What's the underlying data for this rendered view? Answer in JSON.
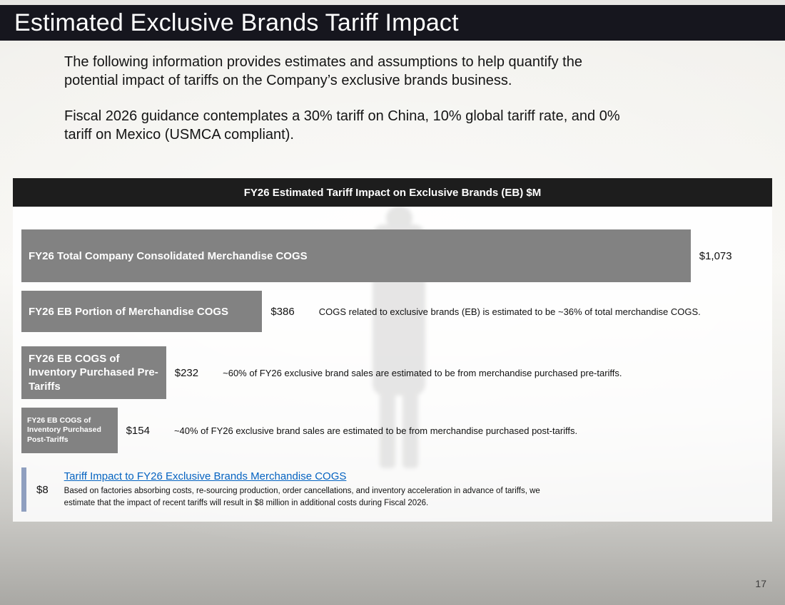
{
  "slide": {
    "title": "Estimated Exclusive Brands Tariff Impact",
    "intro_lines": [
      "The following information provides estimates and assumptions to help quantify the",
      "potential impact of tariffs on the Company’s exclusive brands business."
    ],
    "guidance_lines": [
      "Fiscal 2026 guidance contemplates a 30% tariff on China, 10% global tariff rate, and 0%",
      "tariff on Mexico (USMCA compliant)."
    ],
    "page_number": "17"
  },
  "chart": {
    "header": "FY26 Estimated Tariff Impact on Exclusive Brands (EB) $M",
    "rows": [
      {
        "label": "FY26 Total Company Consolidated Merchandise COGS",
        "value_label": "$1,073",
        "note": ""
      },
      {
        "label": "FY26 EB Portion of Merchandise COGS",
        "value_label": "$386",
        "note": "COGS related to exclusive brands (EB) is estimated to be ~36% of total merchandise COGS."
      },
      {
        "label": "FY26 EB COGS of Inventory Purchased Pre-Tariffs",
        "value_label": "$232",
        "note": "~60% of FY26 exclusive brand sales are estimated to be from merchandise purchased pre-tariffs."
      },
      {
        "label": "FY26 EB COGS of Inventory Purchased Post-Tariffs",
        "value_label": "$154",
        "note": "~40% of FY26 exclusive brand sales are estimated to be from merchandise purchased post-tariffs."
      },
      {
        "label": "Tariff Impact to FY26 Exclusive Brands Merchandise COGS",
        "value_label": "$8",
        "link": "Tariff Impact to FY26 Exclusive Brands Merchandise COGS",
        "note": "Based on factories absorbing costs, re-sourcing production, order cancellations, and inventory acceleration in advance of tariffs, we estimate that the impact of recent tariffs will result in $8 million in additional costs during Fiscal 2026."
      }
    ]
  },
  "chart_data": {
    "type": "bar",
    "orientation": "horizontal",
    "title": "FY26 Estimated Tariff Impact on Exclusive Brands (EB) $M",
    "unit": "$M",
    "categories": [
      "FY26 Total Company Consolidated Merchandise COGS",
      "FY26 EB Portion of Merchandise COGS",
      "FY26 EB COGS of Inventory Purchased Pre-Tariffs",
      "FY26 EB COGS of Inventory Purchased Post-Tariffs",
      "Tariff Impact to FY26 Exclusive Brands Merchandise COGS"
    ],
    "values": [
      1073,
      386,
      232,
      154,
      8
    ],
    "value_labels": [
      "$1,073",
      "$386",
      "$232",
      "$154",
      "$8"
    ],
    "xlim": [
      0,
      1190
    ],
    "grid": false,
    "legend": false,
    "bar_color": "#828282",
    "highlight_bar_color": "#8f9fbf",
    "annotations": [
      "COGS related to exclusive brands (EB) is estimated to be ~36% of total merchandise COGS.",
      "~60% of FY26 exclusive brand sales are estimated to be from merchandise purchased pre-tariffs.",
      "~40% of FY26 exclusive brand sales are estimated to be from merchandise purchased post-tariffs.",
      "Based on factories absorbing costs, re-sourcing production, order cancellations, and inventory acceleration in advance of tariffs, we estimate that the impact of recent tariffs will result in $8 million in additional costs during Fiscal 2026."
    ]
  },
  "colors": {
    "title_bar": "#16161e",
    "chart_header": "#1d1d1d",
    "bar": "#828282",
    "impact_bar": "#8f9fbf",
    "link": "#0563c1"
  }
}
